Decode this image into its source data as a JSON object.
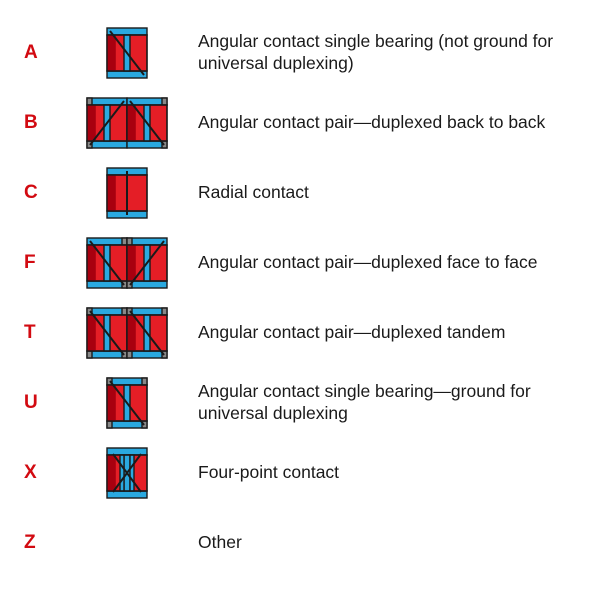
{
  "colors": {
    "accent": "#d20a11",
    "body_red": "#e41e26",
    "body_red_dark": "#a8000f",
    "blue": "#2aa9e0",
    "outline": "#1a1a1a",
    "gray": "#888888",
    "text": "#1a1a1a",
    "bg": "#ffffff"
  },
  "typography": {
    "code_fontsize": 19,
    "code_weight": 700,
    "desc_fontsize": 17.5,
    "font_family": "Segoe UI, Myriad Pro, Arial, sans-serif"
  },
  "rows": [
    {
      "code": "A",
      "desc": "Angular contact single bearing (not ground for universal duplexing)",
      "icon": "angular-single",
      "pair": false,
      "angles": [
        [
          3,
          3,
          37,
          47
        ]
      ],
      "blue_bands": 1,
      "rail_notch": "none"
    },
    {
      "code": "B",
      "desc": "Angular contact pair—duplexed back to back",
      "icon": "angular-back-to-back",
      "pair": true,
      "angles_left": [
        [
          37,
          3,
          3,
          47
        ]
      ],
      "angles_right": [
        [
          3,
          3,
          37,
          47
        ]
      ],
      "blue_bands": 1,
      "rail_notch": "outer"
    },
    {
      "code": "C",
      "desc": "Radial contact",
      "icon": "radial",
      "pair": false,
      "angles": [
        [
          20,
          3,
          20,
          47
        ]
      ],
      "blue_bands": 0,
      "rail_notch": "none"
    },
    {
      "code": "F",
      "desc": "Angular contact pair—duplexed face to face",
      "icon": "angular-face-to-face",
      "pair": true,
      "angles_left": [
        [
          3,
          3,
          37,
          47
        ]
      ],
      "angles_right": [
        [
          37,
          3,
          3,
          47
        ]
      ],
      "blue_bands": 1,
      "rail_notch": "inner"
    },
    {
      "code": "T",
      "desc": "Angular contact pair—duplexed tandem",
      "icon": "angular-tandem",
      "pair": true,
      "angles_left": [
        [
          3,
          3,
          37,
          47
        ]
      ],
      "angles_right": [
        [
          3,
          3,
          37,
          47
        ]
      ],
      "blue_bands": 1,
      "rail_notch": "both"
    },
    {
      "code": "U",
      "desc": "Angular contact single bearing—ground for universal duplexing",
      "icon": "angular-single-ground",
      "pair": false,
      "angles": [
        [
          3,
          3,
          37,
          47
        ]
      ],
      "blue_bands": 1,
      "rail_notch": "both"
    },
    {
      "code": "X",
      "desc": "Four-point contact",
      "icon": "four-point",
      "pair": false,
      "angles": [
        [
          6,
          6,
          34,
          44
        ],
        [
          34,
          6,
          6,
          44
        ]
      ],
      "blue_bands": 2,
      "rail_notch": "none"
    },
    {
      "code": "Z",
      "desc": "Other",
      "icon": "none",
      "pair": false,
      "blue_bands": 0,
      "rail_notch": "none"
    }
  ],
  "icon_geometry": {
    "single_w": 40,
    "single_h": 50,
    "pair_gap": 0,
    "rail_h": 7,
    "body_inset_x": 0,
    "stroke_w": 1.4,
    "angle_stroke_w": 2.0,
    "blue_band_w": 6
  }
}
